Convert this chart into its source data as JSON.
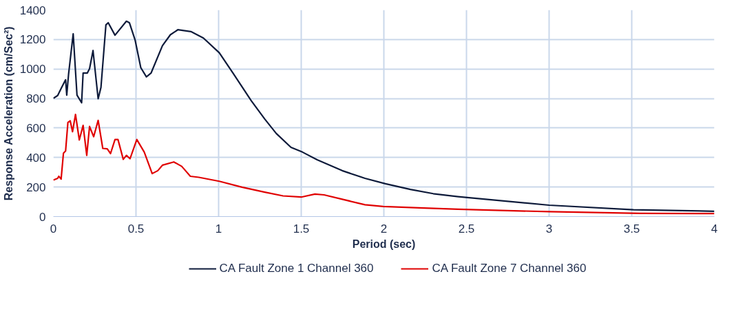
{
  "chart_data": {
    "type": "line",
    "xlabel": "Period (sec)",
    "ylabel": "Response Acceleration (cm/Sec²)",
    "xlim": [
      0,
      4
    ],
    "ylim": [
      0,
      1400
    ],
    "xticks": [
      0,
      0.5,
      1,
      1.5,
      2,
      2.5,
      3,
      3.5,
      4
    ],
    "yticks": [
      0,
      200,
      400,
      600,
      800,
      1000,
      1200,
      1400
    ],
    "grid": true,
    "legend": "bottom",
    "marker": "none",
    "line_style": "solid",
    "series": [
      {
        "name": "CA Fault Zone 1 Channel 360",
        "color": "#0d1a3a",
        "x": [
          0,
          0.026,
          0.047,
          0.074,
          0.081,
          0.092,
          0.12,
          0.143,
          0.171,
          0.18,
          0.205,
          0.219,
          0.24,
          0.271,
          0.288,
          0.318,
          0.332,
          0.373,
          0.442,
          0.46,
          0.495,
          0.529,
          0.563,
          0.591,
          0.66,
          0.708,
          0.753,
          0.832,
          0.908,
          1.004,
          1.087,
          1.197,
          1.28,
          1.349,
          1.438,
          1.507,
          1.596,
          1.748,
          1.886,
          2.01,
          2.161,
          2.299,
          2.45,
          2.505,
          3.001,
          3.511,
          4.0
        ],
        "values": [
          801,
          820,
          868,
          927,
          823,
          964,
          1239,
          823,
          771,
          972,
          972,
          1002,
          1125,
          798,
          875,
          1299,
          1314,
          1229,
          1324,
          1314,
          1195,
          1009,
          947,
          972,
          1158,
          1232,
          1266,
          1254,
          1210,
          1110,
          972,
          786,
          660,
          563,
          469,
          437,
          385,
          311,
          259,
          222,
          184,
          155,
          135,
          129,
          77,
          46,
          36
        ]
      },
      {
        "name": "CA Fault Zone 7 Channel 360",
        "color": "#e00000",
        "x": [
          0,
          0.026,
          0.033,
          0.047,
          0.061,
          0.074,
          0.088,
          0.102,
          0.116,
          0.134,
          0.157,
          0.18,
          0.202,
          0.219,
          0.244,
          0.271,
          0.299,
          0.326,
          0.346,
          0.373,
          0.391,
          0.423,
          0.442,
          0.464,
          0.505,
          0.55,
          0.598,
          0.632,
          0.66,
          0.729,
          0.777,
          0.829,
          0.88,
          1.004,
          1.142,
          1.28,
          1.39,
          1.5,
          1.583,
          1.638,
          1.886,
          1.996,
          2.244,
          2.45,
          2.561,
          3.001,
          3.552,
          4.0
        ],
        "values": [
          247,
          259,
          273,
          254,
          429,
          444,
          638,
          649,
          575,
          692,
          519,
          618,
          415,
          611,
          541,
          652,
          462,
          459,
          427,
          522,
          522,
          388,
          415,
          392,
          522,
          437,
          291,
          311,
          348,
          370,
          340,
          273,
          266,
          239,
          199,
          165,
          140,
          132,
          152,
          147,
          80,
          68,
          58,
          50,
          46,
          33,
          22,
          20
        ]
      }
    ]
  }
}
